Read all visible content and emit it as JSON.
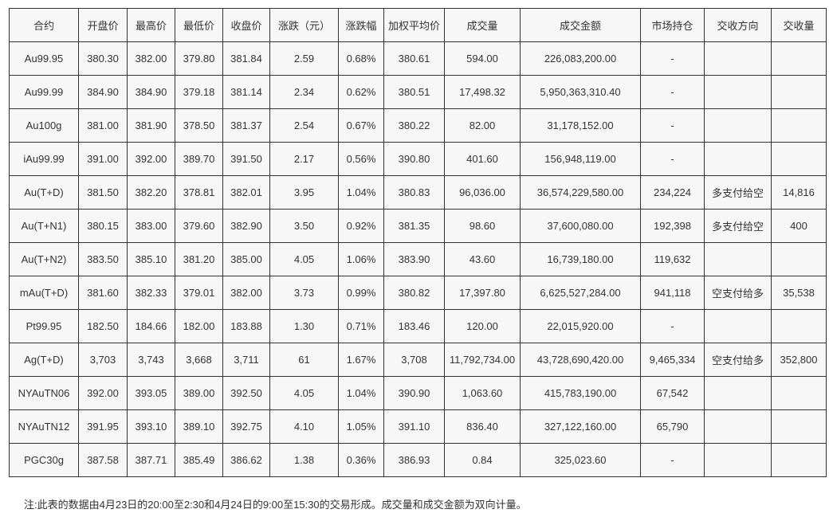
{
  "colors": {
    "page_background": "#ffffff",
    "cell_background": "#f7f7f7",
    "grid_border": "#333333",
    "text": "#333333"
  },
  "table": {
    "columns": [
      "合约",
      "开盘价",
      "最高价",
      "最低价",
      "收盘价",
      "涨跌（元）",
      "涨跌幅",
      "加权平均价",
      "成交量",
      "成交金额",
      "市场持仓",
      "交收方向",
      "交收量"
    ],
    "rows": [
      [
        "Au99.95",
        "380.30",
        "382.00",
        "379.80",
        "381.84",
        "2.59",
        "0.68%",
        "380.61",
        "594.00",
        "226,083,200.00",
        "-",
        "",
        ""
      ],
      [
        "Au99.99",
        "384.90",
        "384.90",
        "379.18",
        "381.14",
        "2.34",
        "0.62%",
        "380.51",
        "17,498.32",
        "5,950,363,310.40",
        "-",
        "",
        ""
      ],
      [
        "Au100g",
        "381.00",
        "381.90",
        "378.50",
        "381.37",
        "2.54",
        "0.67%",
        "380.22",
        "82.00",
        "31,178,152.00",
        "-",
        "",
        ""
      ],
      [
        "iAu99.99",
        "391.00",
        "392.00",
        "389.70",
        "391.50",
        "2.17",
        "0.56%",
        "390.80",
        "401.60",
        "156,948,119.00",
        "-",
        "",
        ""
      ],
      [
        "Au(T+D)",
        "381.50",
        "382.20",
        "378.81",
        "382.01",
        "3.95",
        "1.04%",
        "380.83",
        "96,036.00",
        "36,574,229,580.00",
        "234,224",
        "多支付给空",
        "14,816"
      ],
      [
        "Au(T+N1)",
        "380.15",
        "383.00",
        "379.60",
        "382.90",
        "3.50",
        "0.92%",
        "381.35",
        "98.60",
        "37,600,080.00",
        "192,398",
        "多支付给空",
        "400"
      ],
      [
        "Au(T+N2)",
        "383.50",
        "385.10",
        "381.20",
        "385.00",
        "4.05",
        "1.06%",
        "383.90",
        "43.60",
        "16,739,180.00",
        "119,632",
        "",
        ""
      ],
      [
        "mAu(T+D)",
        "381.60",
        "382.33",
        "379.01",
        "382.00",
        "3.73",
        "0.99%",
        "380.82",
        "17,397.80",
        "6,625,527,284.00",
        "941,118",
        "空支付给多",
        "35,538"
      ],
      [
        "Pt99.95",
        "182.50",
        "184.66",
        "182.00",
        "183.88",
        "1.30",
        "0.71%",
        "183.46",
        "120.00",
        "22,015,920.00",
        "-",
        "",
        ""
      ],
      [
        "Ag(T+D)",
        "3,703",
        "3,743",
        "3,668",
        "3,711",
        "61",
        "1.67%",
        "3,708",
        "11,792,734.00",
        "43,728,690,420.00",
        "9,465,334",
        "空支付给多",
        "352,800"
      ],
      [
        "NYAuTN06",
        "392.00",
        "393.05",
        "389.00",
        "392.50",
        "4.05",
        "1.04%",
        "390.90",
        "1,063.60",
        "415,783,190.00",
        "67,542",
        "",
        ""
      ],
      [
        "NYAuTN12",
        "391.95",
        "393.10",
        "389.10",
        "392.75",
        "4.10",
        "1.05%",
        "391.10",
        "836.40",
        "327,122,160.00",
        "65,790",
        "",
        ""
      ],
      [
        "PGC30g",
        "387.58",
        "387.71",
        "385.49",
        "386.62",
        "1.38",
        "0.36%",
        "386.93",
        "0.84",
        "325,023.60",
        "-",
        "",
        ""
      ]
    ]
  },
  "footer": {
    "note": "注:此表的数据由4月23日的20:00至2:30和4月24日的9:00至15:30的交易形成。成交量和成交金额为双向计量。"
  }
}
